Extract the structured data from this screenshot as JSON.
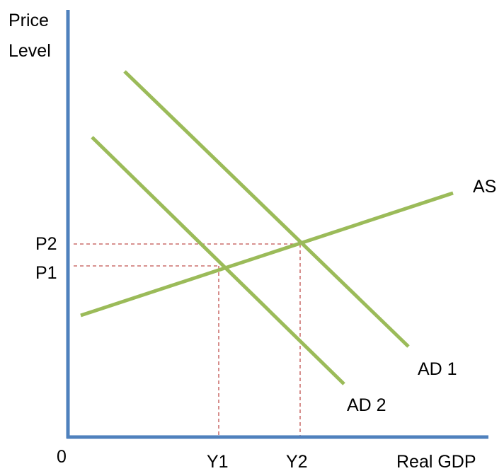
{
  "axes": {
    "y_label_line1": "Price",
    "y_label_line2": "Level",
    "x_label": "Real GDP",
    "origin_label": "0"
  },
  "curves": {
    "as_label": "AS",
    "ad1_label": "AD 1",
    "ad2_label": "AD 2"
  },
  "equilibria": {
    "p1": "P1",
    "p2": "P2",
    "y1": "Y1",
    "y2": "Y2"
  },
  "colors": {
    "axis": "#4f81bd",
    "curve": "#9bbb59",
    "guide": "#c0504d",
    "text": "#000000"
  }
}
